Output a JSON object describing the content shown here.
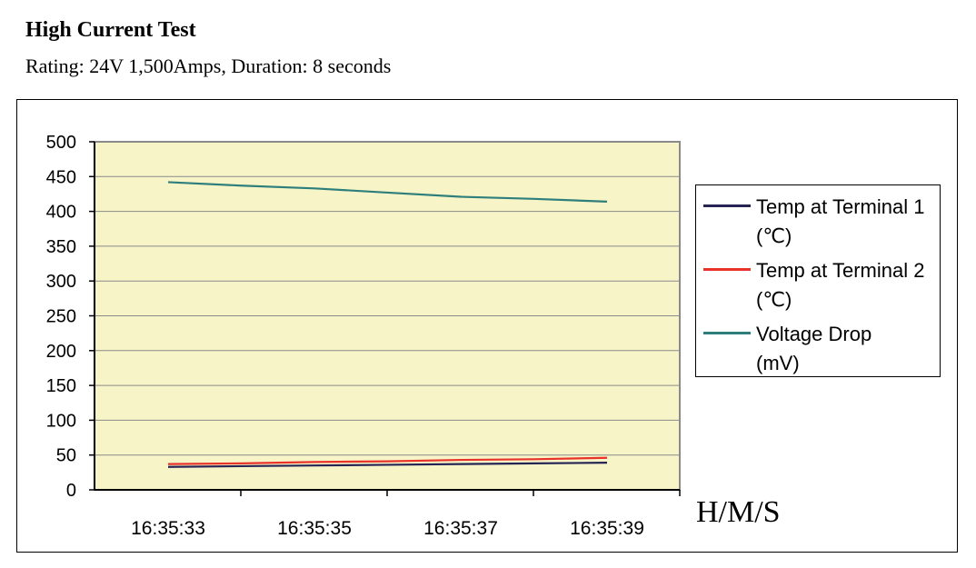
{
  "header": {
    "title": "High Current Test",
    "subtitle": "Rating: 24V 1,500Amps, Duration: 8 seconds"
  },
  "chart_data": {
    "type": "line",
    "title": "",
    "xlabel": "H/M/S",
    "ylabel": "",
    "categories": [
      "16:35:33",
      "16:35:35",
      "16:35:37",
      "16:35:39"
    ],
    "x": [
      "16:35:33",
      "16:35:34",
      "16:35:35",
      "16:35:36",
      "16:35:37",
      "16:35:38",
      "16:35:39"
    ],
    "ylim": [
      0,
      500
    ],
    "yticks": [
      0,
      50,
      100,
      150,
      200,
      250,
      300,
      350,
      400,
      450,
      500
    ],
    "grid": true,
    "plot_background": "#f7f5c8",
    "legend_position": "right",
    "series": [
      {
        "name": "Temp at Terminal 1\n(℃)",
        "color": "#262455",
        "values": [
          33,
          34,
          35,
          36,
          37,
          38,
          39
        ]
      },
      {
        "name": "Temp at Terminal 2\n(℃)",
        "color": "#e8322a",
        "values": [
          37,
          38,
          40,
          41,
          43,
          44,
          46
        ]
      },
      {
        "name": "Voltage Drop\n(mV)",
        "color": "#2e7f7b",
        "values": [
          442,
          437,
          433,
          427,
          421,
          418,
          414
        ]
      }
    ]
  }
}
